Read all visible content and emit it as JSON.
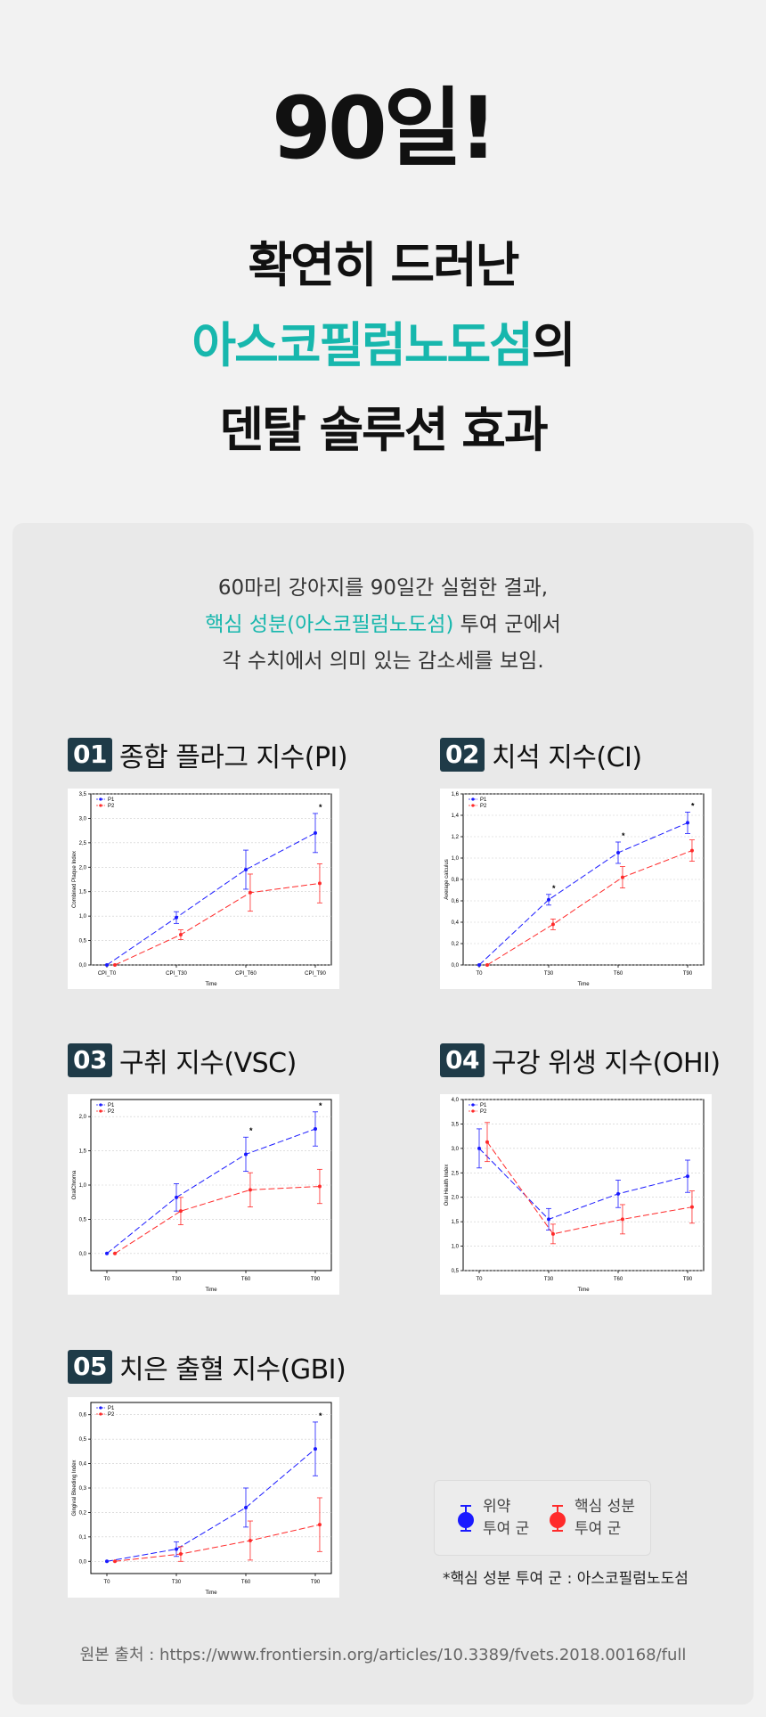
{
  "hero": {
    "line1": "90일!",
    "line2": "확연히 드러난",
    "line3_highlight": "아스코필럼노도섬",
    "line3_suffix": "의",
    "line4": "덴탈 솔루션 효과"
  },
  "intro": {
    "line1": "60마리 강아지를 90일간 실험한 결과,",
    "line2_highlight": "핵심 성분(아스코필럼노도섬)",
    "line2_suffix": " 투여 군에서",
    "line3": "각 수치에서 의미 있는 감소세를 보임."
  },
  "colors": {
    "teal": "#17b7ad",
    "p1": "#1a1aff",
    "p2": "#ff2a2a",
    "badge": "#1f3b48"
  },
  "charts": [
    {
      "num": "01",
      "title": "종합 플라그 지수(PI)"
    },
    {
      "num": "02",
      "title": "치석 지수(CI)"
    },
    {
      "num": "03",
      "title": "구취 지수(VSC)"
    },
    {
      "num": "04",
      "title": "구강 위생 지수(OHI)"
    },
    {
      "num": "05",
      "title": "치은 출혈 지수(GBI)"
    }
  ],
  "legend": {
    "p1_line1": "위약",
    "p1_line2": "투여 군",
    "p2_line1": "핵심 성분",
    "p2_line2": "투여 군"
  },
  "note": "*핵심 성분 투여 군 : 아스코필럼노도섬",
  "source": "원본 출처 : https://www.frontiersin.org/articles/10.3389/fvets.2018.00168/full",
  "chart_data": [
    {
      "type": "line",
      "categories": [
        "CPI_T0",
        "CPI_T30",
        "CPI_T60",
        "CPI_T90"
      ],
      "xlabel": "Time",
      "ylabel": "Combined Plaque Index",
      "ylim": [
        0,
        3.5
      ],
      "yticks": [
        "0,0",
        "0,5",
        "1,0",
        "1,5",
        "2,0",
        "2,5",
        "3,0",
        "3,5"
      ],
      "ytick_values": [
        0,
        0.5,
        1,
        1.5,
        2,
        2.5,
        3,
        3.5
      ],
      "legend_position": "top-left",
      "series": [
        {
          "name": "P1",
          "values": [
            0,
            0.97,
            1.95,
            2.7
          ],
          "err": [
            0,
            0.12,
            0.4,
            0.4
          ]
        },
        {
          "name": "P2",
          "values": [
            0,
            0.62,
            1.48,
            1.67
          ],
          "err": [
            0,
            0.1,
            0.38,
            0.4
          ]
        }
      ],
      "stars": [
        "",
        "",
        "",
        "*"
      ]
    },
    {
      "type": "line",
      "categories": [
        "T0",
        "T30",
        "T60",
        "T90"
      ],
      "xlabel": "Time",
      "ylabel": "Average calculus",
      "ylim": [
        0,
        1.6
      ],
      "yticks": [
        "0,0",
        "0,2",
        "0,4",
        "0,6",
        "0,8",
        "1,0",
        "1,2",
        "1,4",
        "1,6"
      ],
      "ytick_values": [
        0,
        0.2,
        0.4,
        0.6,
        0.8,
        1,
        1.2,
        1.4,
        1.6
      ],
      "legend_position": "top-left",
      "series": [
        {
          "name": "P1",
          "values": [
            0,
            0.61,
            1.05,
            1.33
          ],
          "err": [
            0,
            0.05,
            0.1,
            0.1
          ]
        },
        {
          "name": "P2",
          "values": [
            0,
            0.38,
            0.82,
            1.07
          ],
          "err": [
            0,
            0.05,
            0.1,
            0.1
          ]
        }
      ],
      "stars": [
        "",
        "*",
        "*",
        "*"
      ]
    },
    {
      "type": "line",
      "categories": [
        "T0",
        "T30",
        "T60",
        "T90"
      ],
      "xlabel": "Time",
      "ylabel": "OralChroma",
      "ylim": [
        -0.25,
        2.25
      ],
      "yticks": [
        "0,0",
        "0,5",
        "1,0",
        "1,5",
        "2,0"
      ],
      "ytick_values": [
        0,
        0.5,
        1,
        1.5,
        2
      ],
      "legend_position": "top-left",
      "series": [
        {
          "name": "P1",
          "values": [
            0,
            0.82,
            1.45,
            1.82
          ],
          "err": [
            0,
            0.2,
            0.25,
            0.25
          ]
        },
        {
          "name": "P2",
          "values": [
            0,
            0.62,
            0.93,
            0.98
          ],
          "err": [
            0,
            0.2,
            0.25,
            0.25
          ]
        }
      ],
      "stars": [
        "",
        "",
        "*",
        "*"
      ]
    },
    {
      "type": "line",
      "categories": [
        "T0",
        "T30",
        "T60",
        "T90"
      ],
      "xlabel": "Time",
      "ylabel": "Oral Health Index",
      "ylim": [
        0.5,
        4.0
      ],
      "yticks": [
        "0,5",
        "1,0",
        "1,5",
        "2,0",
        "2,5",
        "3,0",
        "3,5",
        "4,0"
      ],
      "ytick_values": [
        0.5,
        1,
        1.5,
        2,
        2.5,
        3,
        3.5,
        4
      ],
      "legend_position": "top-left",
      "series": [
        {
          "name": "P1",
          "values": [
            3.0,
            1.55,
            2.07,
            2.43
          ],
          "err": [
            0.4,
            0.22,
            0.28,
            0.33
          ]
        },
        {
          "name": "P2",
          "values": [
            3.13,
            1.25,
            1.55,
            1.8
          ],
          "err": [
            0.4,
            0.2,
            0.3,
            0.33
          ]
        }
      ],
      "stars": [
        "",
        "",
        "",
        ""
      ]
    },
    {
      "type": "line",
      "categories": [
        "T0",
        "T30",
        "T60",
        "T90"
      ],
      "xlabel": "Time",
      "ylabel": "Gingival Bleeding Index",
      "ylim": [
        -0.05,
        0.65
      ],
      "yticks": [
        "0,0",
        "0,1",
        "0,2",
        "0,3",
        "0,4",
        "0,5",
        "0,6"
      ],
      "ytick_values": [
        0,
        0.1,
        0.2,
        0.3,
        0.4,
        0.5,
        0.6
      ],
      "legend_position": "top-left",
      "series": [
        {
          "name": "P1",
          "values": [
            0,
            0.05,
            0.22,
            0.46
          ],
          "err": [
            0,
            0.03,
            0.08,
            0.11
          ]
        },
        {
          "name": "P2",
          "values": [
            0,
            0.03,
            0.085,
            0.15
          ],
          "err": [
            0,
            0.03,
            0.08,
            0.11
          ]
        }
      ],
      "stars": [
        "",
        "",
        "",
        "*"
      ]
    }
  ]
}
